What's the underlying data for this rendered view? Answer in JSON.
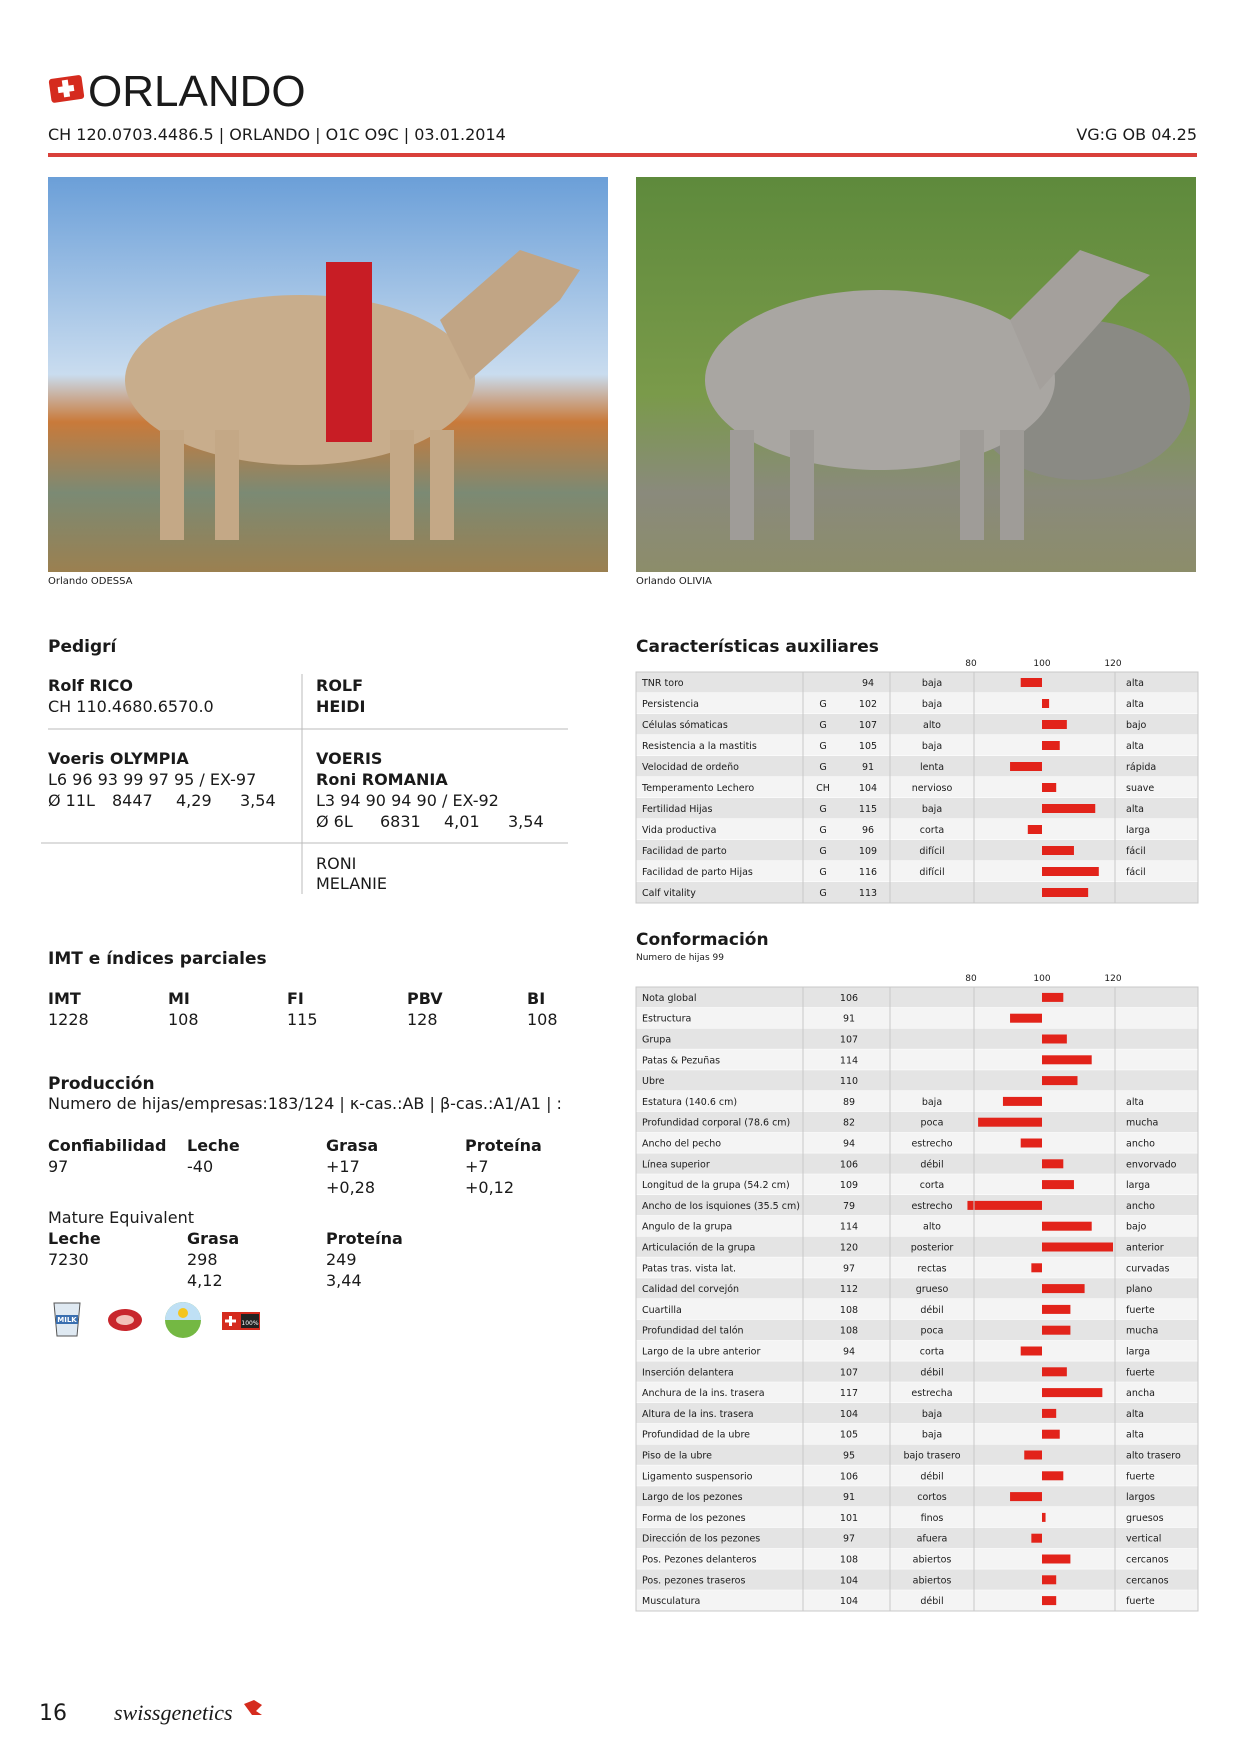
{
  "header": {
    "title": "ORLANDO",
    "id_line": "CH 120.0703.4486.5 | ORLANDO | O1C O9C | 03.01.2014",
    "rating": "VG:G OB 04.25"
  },
  "photos": [
    {
      "caption": "Orlando ODESSA"
    },
    {
      "caption": "Orlando OLIVIA"
    }
  ],
  "pedigree": {
    "title": "Pedigrí",
    "sire": {
      "name": "Rolf RICO",
      "id": "CH 110.4680.6570.0"
    },
    "sire_parents": [
      "ROLF",
      "HEIDI"
    ],
    "dam": {
      "name": "Voeris OLYMPIA",
      "line": "L6 96 93 99 97 95 / EX-97",
      "stats": [
        "Ø 11L",
        "8447",
        "4,29",
        "3,54"
      ]
    },
    "dam_sire": "VOERIS",
    "dam_dam": {
      "name": "Roni ROMANIA",
      "line": "L3 94 90 94 90 / EX-92",
      "stats": [
        "Ø 6L",
        "6831",
        "4,01",
        "3,54"
      ]
    },
    "dam_dam_parents": [
      "RONI",
      "MELANIE"
    ]
  },
  "indices": {
    "title": "IMT e índices parciales",
    "headers": [
      "IMT",
      "MI",
      "FI",
      "PBV",
      "BI"
    ],
    "values": [
      1228,
      108,
      115,
      128,
      108
    ]
  },
  "production": {
    "title": "Producción",
    "info": "Numero de hijas/empresas:183/124 | κ-cas.:AB | β-cas.:A1/A1 | :",
    "columns": [
      {
        "label": "Confiabilidad",
        "values": [
          "97"
        ]
      },
      {
        "label": "Leche",
        "values": [
          "-40"
        ]
      },
      {
        "label": "Grasa",
        "values": [
          "+17",
          "+0,28"
        ]
      },
      {
        "label": "Proteína",
        "values": [
          "+7",
          "+0,12"
        ]
      }
    ],
    "mature_title": "Mature Equivalent",
    "mature_columns": [
      {
        "label": "Leche",
        "values": [
          "7230"
        ]
      },
      {
        "label": "Grasa",
        "values": [
          "298",
          "4,12"
        ]
      },
      {
        "label": "Proteína",
        "values": [
          "249",
          "3,44"
        ]
      }
    ],
    "milk_label": "MILK",
    "swiss_badge": "100%"
  },
  "auxiliary": {
    "title": "Características auxiliares",
    "scale_ticks": [
      80,
      100,
      120
    ],
    "rows": [
      {
        "name": "TNR toro",
        "value": 94,
        "low": "baja",
        "high": "alta"
      },
      {
        "name": "Persistencia",
        "source": "G",
        "value": 102,
        "low": "baja",
        "high": "alta"
      },
      {
        "name": "Células sómaticas",
        "source": "G",
        "value": 107,
        "low": "alto",
        "high": "bajo"
      },
      {
        "name": "Resistencia a la mastitis",
        "source": "G",
        "value": 105,
        "low": "baja",
        "high": "alta"
      },
      {
        "name": "Velocidad de ordeño",
        "source": "G",
        "value": 91,
        "low": "lenta",
        "high": "rápida"
      },
      {
        "name": "Temperamento Lechero",
        "source": "CH",
        "value": 104,
        "low": "nervioso",
        "high": "suave"
      },
      {
        "name": "Fertilidad Hijas",
        "source": "G",
        "value": 115,
        "low": "baja",
        "high": "alta"
      },
      {
        "name": "Vida productiva",
        "source": "G",
        "value": 96,
        "low": "corta",
        "high": "larga"
      },
      {
        "name": "Facilidad de parto",
        "source": "G",
        "value": 109,
        "low": "difícil",
        "high": "fácil"
      },
      {
        "name": "Facilidad de parto Hijas",
        "source": "G",
        "value": 116,
        "low": "difícil",
        "high": "fácil"
      },
      {
        "name": "Calf vitality",
        "source": "G",
        "value": 113
      }
    ]
  },
  "conformation": {
    "title": "Conformación",
    "subtitle": "Numero de hijas 99",
    "scale_ticks": [
      80,
      100,
      120
    ],
    "rows": [
      {
        "name": "Nota global",
        "value": 106
      },
      {
        "name": "Estructura",
        "value": 91
      },
      {
        "name": "Grupa",
        "value": 107
      },
      {
        "name": "Patas & Pezuñas",
        "value": 114
      },
      {
        "name": "Ubre",
        "value": 110
      },
      {
        "name": "Estatura (140.6 cm)",
        "value": 89,
        "low": "baja",
        "high": "alta"
      },
      {
        "name": "Profundidad corporal (78.6 cm)",
        "value": 82,
        "low": "poca",
        "high": "mucha"
      },
      {
        "name": "Ancho del pecho",
        "value": 94,
        "low": "estrecho",
        "high": "ancho"
      },
      {
        "name": "Línea superior",
        "value": 106,
        "low": "débil",
        "high": "envorvado"
      },
      {
        "name": "Longitud de la grupa (54.2 cm)",
        "value": 109,
        "low": "corta",
        "high": "larga"
      },
      {
        "name": "Ancho de los isquiones (35.5 cm)",
        "value": 79,
        "low": "estrecho",
        "high": "ancho"
      },
      {
        "name": "Angulo de la grupa",
        "value": 114,
        "low": "alto",
        "high": "bajo"
      },
      {
        "name": "Articulación de la grupa",
        "value": 120,
        "low": "posterior",
        "high": "anterior"
      },
      {
        "name": "Patas tras. vista lat.",
        "value": 97,
        "low": "rectas",
        "high": "curvadas"
      },
      {
        "name": "Calidad del corvejón",
        "value": 112,
        "low": "grueso",
        "high": "plano"
      },
      {
        "name": "Cuartilla",
        "value": 108,
        "low": "débil",
        "high": "fuerte"
      },
      {
        "name": "Profundidad del talón",
        "value": 108,
        "low": "poca",
        "high": "mucha"
      },
      {
        "name": "Largo de la ubre anterior",
        "value": 94,
        "low": "corta",
        "high": "larga"
      },
      {
        "name": "Inserción delantera",
        "value": 107,
        "low": "débil",
        "high": "fuerte"
      },
      {
        "name": "Anchura de la ins. trasera",
        "value": 117,
        "low": "estrecha",
        "high": "ancha"
      },
      {
        "name": "Altura de la ins. trasera",
        "value": 104,
        "low": "baja",
        "high": "alta"
      },
      {
        "name": "Profundidad de la ubre",
        "value": 105,
        "low": "baja",
        "high": "alta"
      },
      {
        "name": "Piso de la ubre",
        "value": 95,
        "low": "bajo trasero",
        "high": "alto trasero"
      },
      {
        "name": "Ligamento suspensorio",
        "value": 106,
        "low": "débil",
        "high": "fuerte"
      },
      {
        "name": "Largo de los pezones",
        "value": 91,
        "low": "cortos",
        "high": "largos"
      },
      {
        "name": "Forma de los pezones",
        "value": 101,
        "low": "finos",
        "high": "gruesos"
      },
      {
        "name": "Dirección de los pezones",
        "value": 97,
        "low": "afuera",
        "high": "vertical"
      },
      {
        "name": "Pos. Pezones delanteros",
        "value": 108,
        "low": "abiertos",
        "high": "cercanos"
      },
      {
        "name": "Pos. pezones traseros",
        "value": 104,
        "low": "abiertos",
        "high": "cercanos"
      },
      {
        "name": "Musculatura",
        "value": 104,
        "low": "débil",
        "high": "fuerte"
      }
    ]
  },
  "footer": {
    "page": "16",
    "brand": "swissgenetics"
  }
}
